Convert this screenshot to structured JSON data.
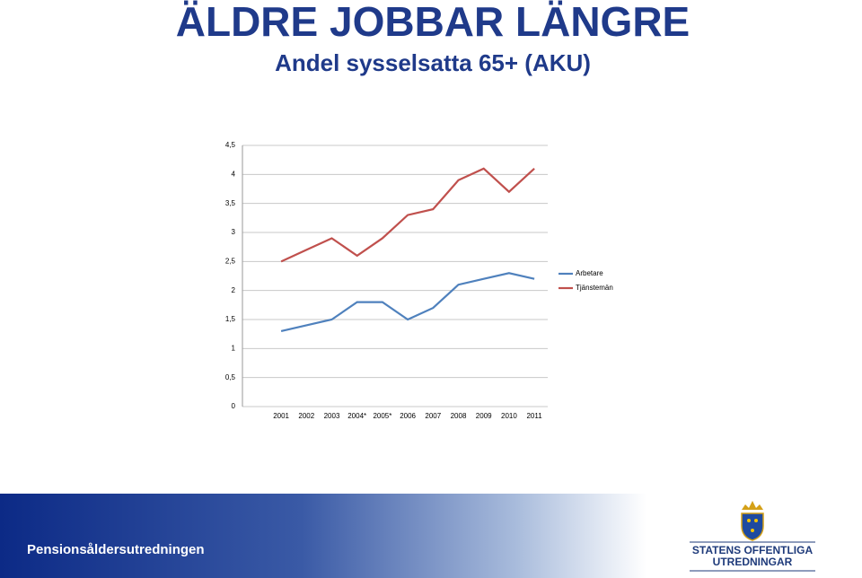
{
  "chart_data": {
    "type": "line",
    "title": "ÄLDRE JOBBAR LÄNGRE",
    "subtitle": "Andel sysselsatta 65+ (AKU)",
    "categories": [
      "2001",
      "2002",
      "2003",
      "2004*",
      "2005*",
      "2006",
      "2007",
      "2008",
      "2009",
      "2010",
      "2011"
    ],
    "series": [
      {
        "name": "Arbetare",
        "color": "#4f81bd",
        "values": [
          1.3,
          1.4,
          1.5,
          1.8,
          1.8,
          1.5,
          1.7,
          2.1,
          2.2,
          2.3,
          2.2
        ]
      },
      {
        "name": "Tjänstemän",
        "color": "#c0504d",
        "values": [
          2.5,
          2.7,
          2.9,
          2.6,
          2.9,
          3.3,
          3.4,
          3.9,
          4.1,
          3.7,
          4.1
        ]
      }
    ],
    "ylim": [
      0,
      4.5
    ],
    "yticks": [
      0,
      {
        "value": 0.5,
        "label": "0,5"
      },
      1,
      {
        "value": 1.5,
        "label": "1,5"
      },
      2,
      {
        "value": 2.5,
        "label": "2,5"
      },
      3,
      {
        "value": 3.5,
        "label": "3,5"
      },
      4,
      {
        "value": 4.5,
        "label": "4,5"
      }
    ],
    "grid": true,
    "legend": "right"
  },
  "footer": {
    "text": "Pensionsåldersutredningen",
    "logo": [
      "STATENS OFFENTLIGA",
      "UTREDNINGAR"
    ]
  }
}
